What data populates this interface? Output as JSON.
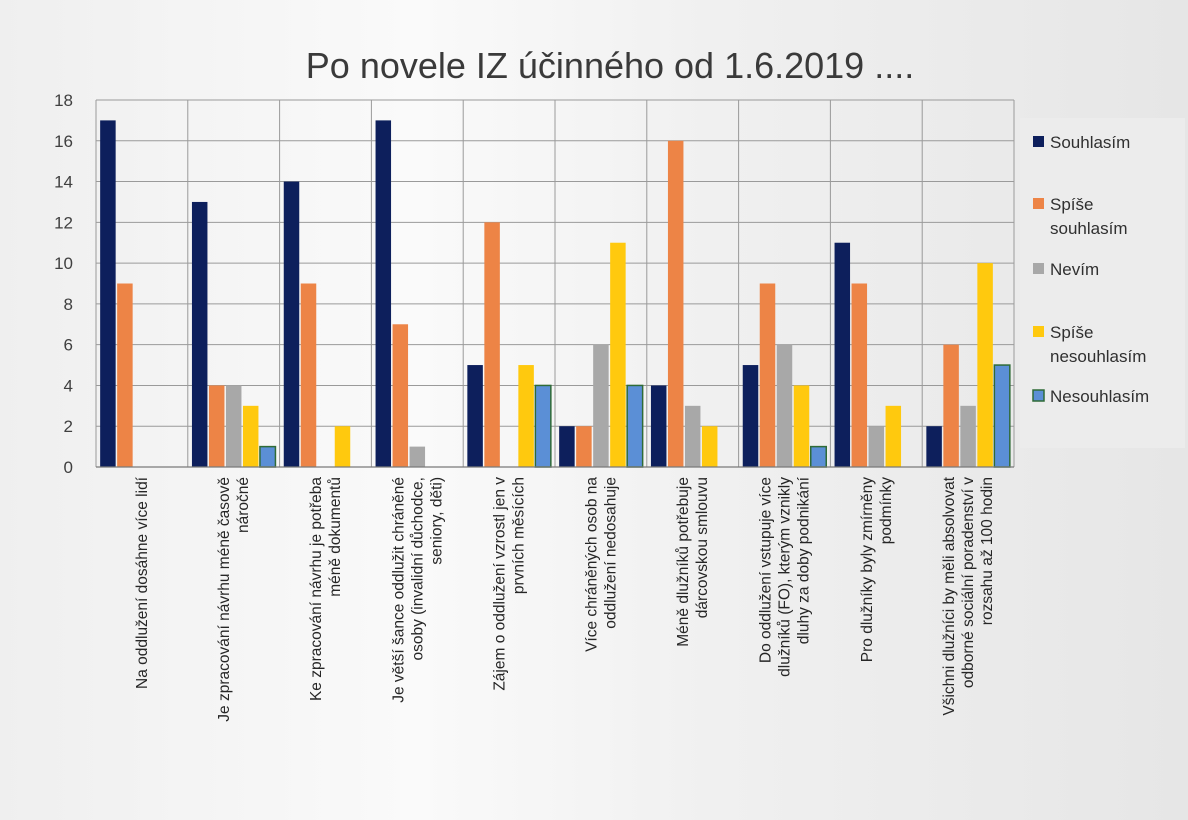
{
  "chart_data": {
    "type": "bar",
    "title": "Po novele IZ účinného od 1.6.2019 ....",
    "xlabel": "",
    "ylabel": "",
    "ylim": [
      0,
      18
    ],
    "yticks": [
      0,
      2,
      4,
      6,
      8,
      10,
      12,
      14,
      16,
      18
    ],
    "grid": true,
    "legend_position": "right",
    "categories": [
      [
        "Na oddlužení dosáhne více lidí"
      ],
      [
        "Je zpracování návrhu méně časově",
        "náročné"
      ],
      [
        "Ke zpracování návrhu je potřeba",
        "méně dokumentů"
      ],
      [
        "Je větší šance oddlužit chráněné",
        "osoby (invalidní důchodce,",
        "seniory, děti)"
      ],
      [
        "Zájem o oddlužení vzrostl jen v",
        "prvních měsících"
      ],
      [
        "Více chráněných osob na",
        "oddlužení nedosahuje"
      ],
      [
        "Méně dlužníků potřebuje",
        "dárcovskou smlouvu"
      ],
      [
        "Do oddlužení vstupuje více",
        "dlužníků (FO), kterým vznikly",
        "dluhy za doby podnikání"
      ],
      [
        "Pro dlužníky byly zmírněny",
        "podmínky"
      ],
      [
        "Všichni dlužníci by měli absolvovat",
        "odborné sociální poradenství v",
        "rozsahu až 100 hodin"
      ]
    ],
    "series": [
      {
        "name": "Souhlasím",
        "color": "#0d1f5c",
        "values": [
          17,
          13,
          14,
          17,
          5,
          2,
          4,
          5,
          11,
          2
        ]
      },
      {
        "name": "Spíše souhlasím",
        "color": "#ed8446",
        "values": [
          9,
          4,
          9,
          7,
          12,
          2,
          16,
          9,
          9,
          6
        ]
      },
      {
        "name": "Nevím",
        "color": "#a8a8a8",
        "values": [
          0,
          4,
          0,
          1,
          0,
          6,
          3,
          6,
          2,
          3
        ]
      },
      {
        "name": "Spíše nesouhlasím",
        "color": "#ffc90e",
        "values": [
          0,
          3,
          2,
          0,
          5,
          11,
          2,
          4,
          3,
          10
        ]
      },
      {
        "name": "Nesouhlasím",
        "color": "#5b8fd6",
        "values": [
          0,
          1,
          0,
          0,
          4,
          4,
          0,
          1,
          0,
          5
        ]
      }
    ],
    "legend": [
      {
        "lines": [
          "Souhlasím"
        ]
      },
      {
        "lines": [
          "Spíše",
          "souhlasím"
        ]
      },
      {
        "lines": [
          "Nevím"
        ]
      },
      {
        "lines": [
          "Spíše",
          "nesouhlasím"
        ]
      },
      {
        "lines": [
          "Nesouhlasím"
        ]
      }
    ]
  }
}
